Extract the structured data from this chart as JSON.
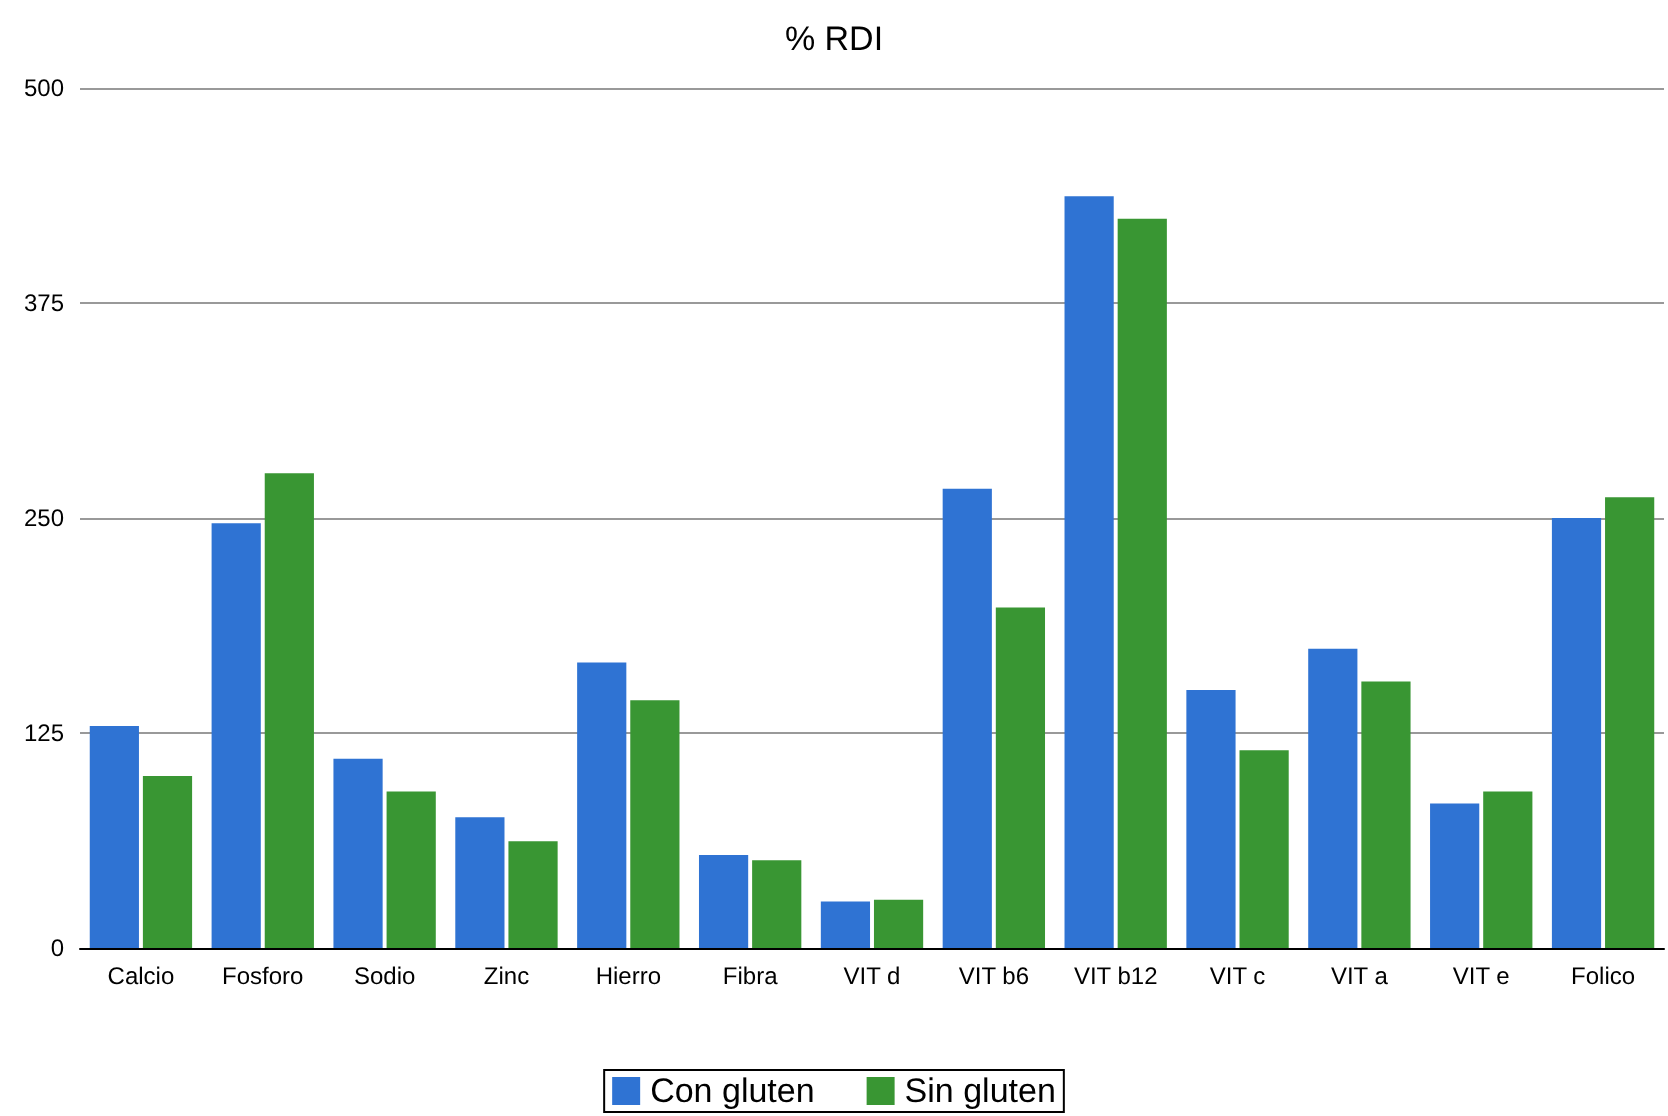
{
  "chart_data": {
    "type": "bar",
    "title": "% RDI",
    "categories": [
      "Calcio",
      "Fosforo",
      "Sodio",
      "Zinc",
      "Hierro",
      "Fibra",
      "VIT d",
      "VIT b6",
      "VIT b12",
      "VIT c",
      "VIT a",
      "VIT e",
      "Folico"
    ],
    "series": [
      {
        "name": "Con gluten",
        "color": "#2f73d3",
        "values": [
          129,
          247,
          110,
          76,
          166,
          54,
          27,
          267,
          437,
          150,
          174,
          84,
          250
        ]
      },
      {
        "name": "Sin gluten",
        "color": "#399633",
        "values": [
          100,
          276,
          91,
          62,
          144,
          51,
          28,
          198,
          424,
          115,
          155,
          91,
          262
        ]
      }
    ],
    "ylim": [
      0,
      500
    ],
    "yticks": [
      0,
      125,
      250,
      375,
      500
    ],
    "grid": "y",
    "legend": "bottom"
  }
}
